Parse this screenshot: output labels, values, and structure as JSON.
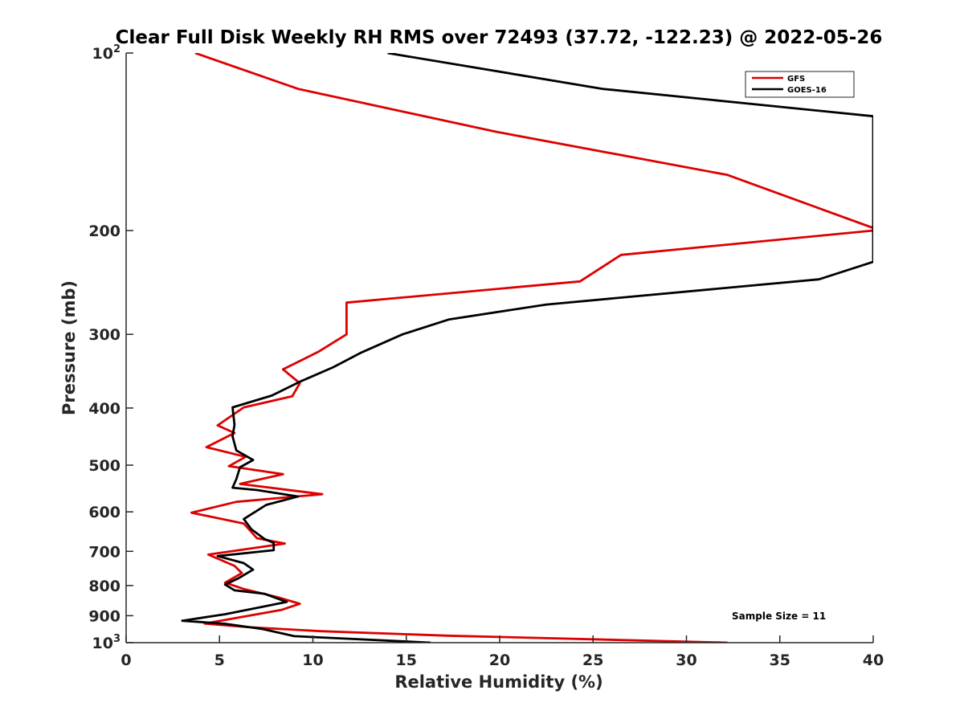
{
  "chart_data": {
    "type": "line",
    "title": "Clear Full Disk Weekly RH RMS over 72493 (37.72, -122.23) @ 2022-05-26",
    "xlabel": "Relative Humidity (%)",
    "ylabel": "Pressure (mb)",
    "xlim": [
      0,
      40
    ],
    "ylim": [
      100,
      1000
    ],
    "y_scale": "log",
    "y_reversed": true,
    "x_ticks": [
      0,
      5,
      10,
      15,
      20,
      25,
      30,
      35,
      40
    ],
    "y_ticks": [
      {
        "value": 100,
        "base": "10",
        "exp": "2"
      },
      {
        "value": 200,
        "label": "200"
      },
      {
        "value": 300,
        "label": "300"
      },
      {
        "value": 400,
        "label": "400"
      },
      {
        "value": 500,
        "label": "500"
      },
      {
        "value": 600,
        "label": "600"
      },
      {
        "value": 700,
        "label": "700"
      },
      {
        "value": 800,
        "label": "800"
      },
      {
        "value": 900,
        "label": "900"
      },
      {
        "value": 1000,
        "base": "10",
        "exp": "3"
      }
    ],
    "legend_position": "top-right",
    "grid": false,
    "annotation": "Sample Size = 11",
    "series": [
      {
        "name": "GFS",
        "color": "#dd0000",
        "points": [
          [
            3.7,
            100
          ],
          [
            9.2,
            115
          ],
          [
            19.8,
            136
          ],
          [
            32.2,
            161
          ],
          [
            40,
            198
          ],
          [
            40,
            200
          ],
          [
            26.5,
            220
          ],
          [
            24.3,
            244
          ],
          [
            11.8,
            265
          ],
          [
            11.8,
            286
          ],
          [
            11.8,
            300
          ],
          [
            10.3,
            321
          ],
          [
            8.4,
            344
          ],
          [
            9.3,
            363
          ],
          [
            8.9,
            382
          ],
          [
            6.3,
            399
          ],
          [
            4.9,
            428
          ],
          [
            5.8,
            441
          ],
          [
            4.3,
            466
          ],
          [
            6.4,
            484
          ],
          [
            5.5,
            502
          ],
          [
            8.4,
            518
          ],
          [
            6.1,
            538
          ],
          [
            10.5,
            560
          ],
          [
            5.9,
            577
          ],
          [
            3.5,
            602
          ],
          [
            6.3,
            628
          ],
          [
            7.0,
            665
          ],
          [
            8.5,
            679
          ],
          [
            4.4,
            709
          ],
          [
            5.8,
            741
          ],
          [
            6.2,
            762
          ],
          [
            5.3,
            791
          ],
          [
            6.3,
            811
          ],
          [
            8.1,
            837
          ],
          [
            9.3,
            859
          ],
          [
            8.3,
            880
          ],
          [
            4.2,
            928
          ],
          [
            6.5,
            941
          ],
          [
            10.4,
            956
          ],
          [
            17.2,
            973
          ],
          [
            32.2,
            1000
          ]
        ]
      },
      {
        "name": "GOES-16",
        "color": "#000000",
        "points": [
          [
            14.0,
            100
          ],
          [
            25.5,
            115
          ],
          [
            40,
            128
          ],
          [
            40,
            226
          ],
          [
            37.1,
            242
          ],
          [
            22.5,
            267
          ],
          [
            17.3,
            283
          ],
          [
            14.8,
            300
          ],
          [
            12.6,
            322
          ],
          [
            11.1,
            341
          ],
          [
            9.3,
            361
          ],
          [
            7.8,
            381
          ],
          [
            5.7,
            399
          ],
          [
            5.8,
            427
          ],
          [
            5.7,
            447
          ],
          [
            5.9,
            472
          ],
          [
            6.8,
            490
          ],
          [
            6.1,
            504
          ],
          [
            5.9,
            528
          ],
          [
            5.7,
            546
          ],
          [
            7.0,
            551
          ],
          [
            9.2,
            565
          ],
          [
            7.5,
            584
          ],
          [
            6.3,
            617
          ],
          [
            6.7,
            642
          ],
          [
            7.4,
            667
          ],
          [
            7.9,
            677
          ],
          [
            7.9,
            697
          ],
          [
            4.9,
            713
          ],
          [
            6.3,
            733
          ],
          [
            6.8,
            752
          ],
          [
            6.0,
            778
          ],
          [
            5.3,
            797
          ],
          [
            5.8,
            815
          ],
          [
            7.4,
            826
          ],
          [
            8.6,
            853
          ],
          [
            7.4,
            868
          ],
          [
            5.3,
            895
          ],
          [
            3.0,
            918
          ],
          [
            5.3,
            929
          ],
          [
            7.3,
            948
          ],
          [
            9.0,
            975
          ],
          [
            16.3,
            1000
          ]
        ]
      }
    ]
  }
}
